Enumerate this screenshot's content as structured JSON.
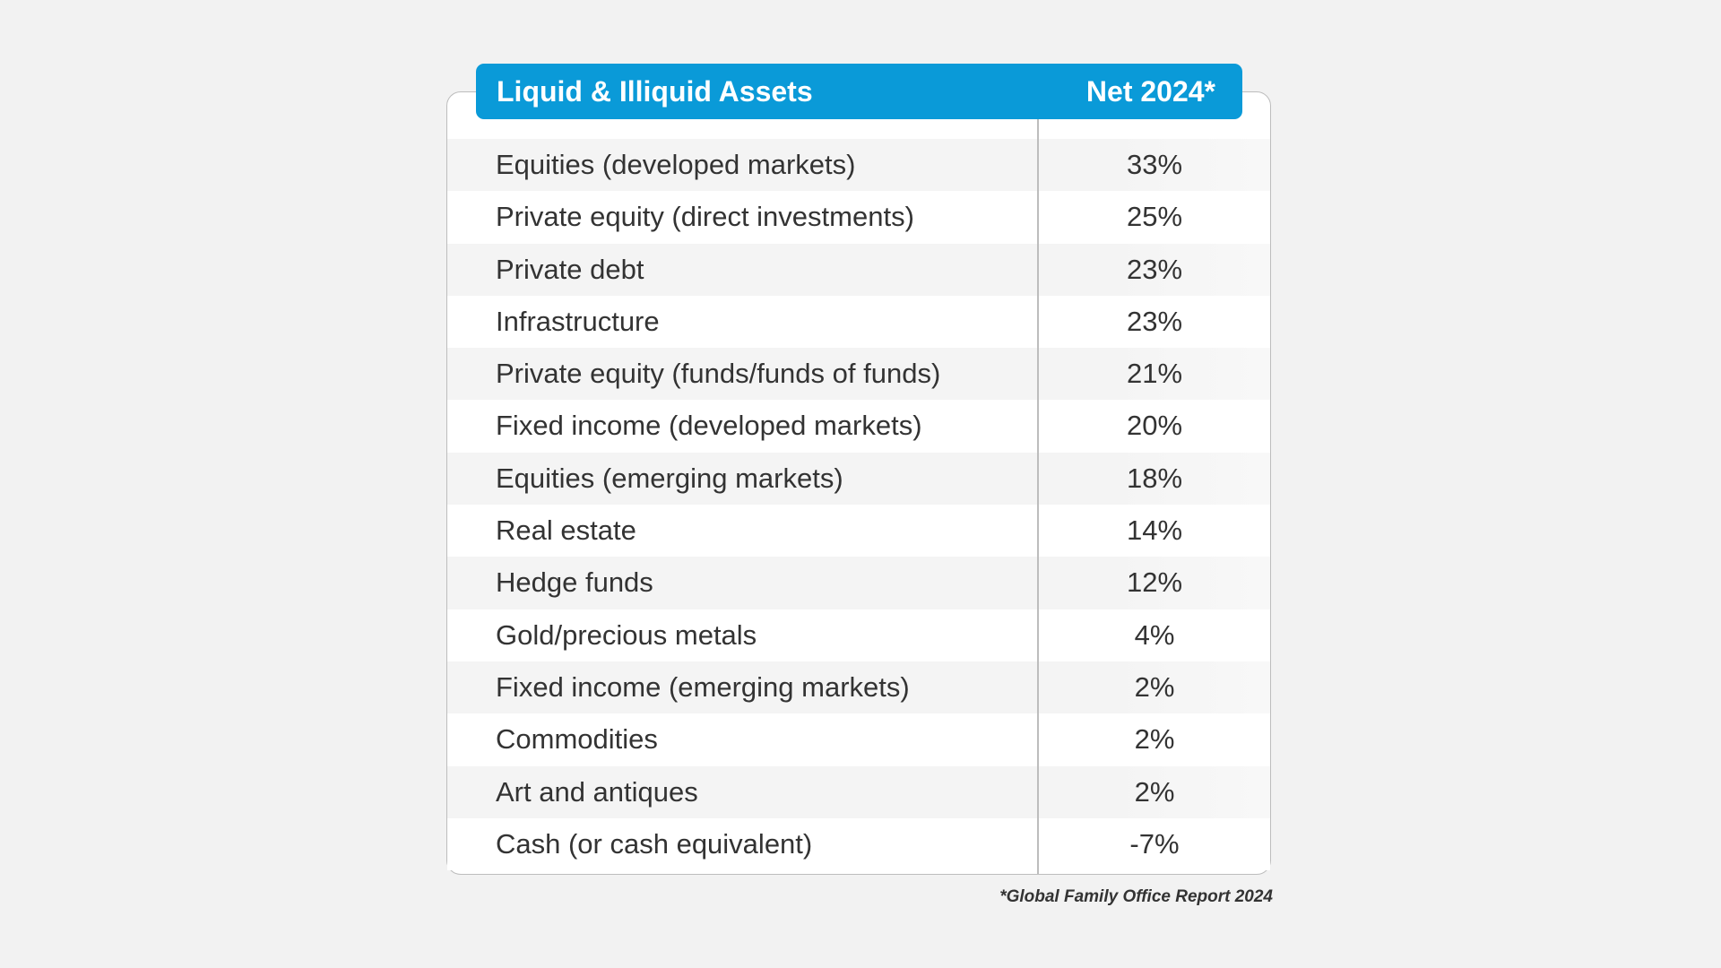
{
  "table": {
    "header": {
      "label": "Liquid & Illiquid Assets",
      "value": "Net 2024*"
    },
    "rows": [
      {
        "label": "Equities (developed markets)",
        "value": "33%"
      },
      {
        "label": "Private equity (direct investments)",
        "value": "25%"
      },
      {
        "label": "Private debt",
        "value": "23%"
      },
      {
        "label": "Infrastructure",
        "value": "23%"
      },
      {
        "label": "Private equity (funds/funds of funds)",
        "value": "21%"
      },
      {
        "label": "Fixed income (developed markets)",
        "value": "20%"
      },
      {
        "label": "Equities (emerging markets)",
        "value": "18%"
      },
      {
        "label": "Real estate",
        "value": "14%"
      },
      {
        "label": "Hedge funds",
        "value": "12%"
      },
      {
        "label": "Gold/precious metals",
        "value": "4%"
      },
      {
        "label": "Fixed income (emerging markets)",
        "value": "2%"
      },
      {
        "label": "Commodities",
        "value": "2%"
      },
      {
        "label": "Art and antiques",
        "value": "2%"
      },
      {
        "label": "Cash (or cash equivalent)",
        "value": "-7%"
      }
    ]
  },
  "footnote": "*Global Family Office Report 2024",
  "colors": {
    "header_bg": "#0a9ad8",
    "header_text": "#ffffff",
    "row_alt_bg": "#f4f4f4",
    "body_text": "#333333",
    "border": "#bdbdbd",
    "page_bg": "#f2f2f2"
  }
}
